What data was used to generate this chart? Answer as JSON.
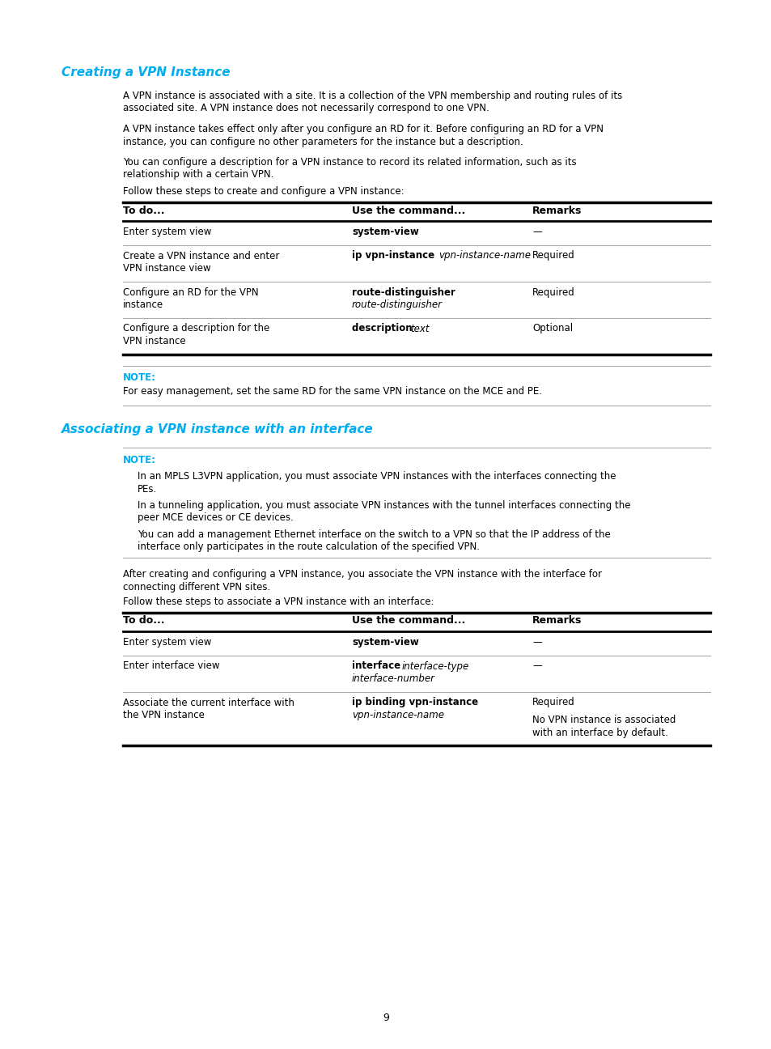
{
  "bg_color": "#ffffff",
  "cyan_color": "#00AEEF",
  "black_color": "#000000",
  "section1_title": "Creating a VPN Instance",
  "section1_para1": "A VPN instance is associated with a site. It is a collection of the VPN membership and routing rules of its associated site. A VPN instance does not necessarily correspond to one VPN.",
  "section1_para2": "A VPN instance takes effect only after you configure an RD for it. Before configuring an RD for a VPN instance, you can configure no other parameters for the instance but a description.",
  "section1_para3": "You can configure a description for a VPN instance to record its related information, such as its relationship with a certain VPN.",
  "section1_table_intro": "Follow these steps to create and configure a VPN instance:",
  "table1_headers": [
    "To do...",
    "Use the command...",
    "Remarks"
  ],
  "table1_rows": [
    [
      "Enter system view",
      "system-view",
      "—"
    ],
    [
      "Create a VPN instance and enter\nVPN instance view",
      "ip vpn-instance vpn-instance-name",
      "Required"
    ],
    [
      "Configure an RD for the VPN\ninstance",
      "route-distinguisher\nroute-distinguisher",
      "Required"
    ],
    [
      "Configure a description for the\nVPN instance",
      "description text",
      "Optional"
    ]
  ],
  "note1_label": "NOTE:",
  "note1_text": "For easy management, set the same RD for the same VPN instance on the MCE and PE.",
  "section2_title": "Associating a VPN instance with an interface",
  "note2_label": "NOTE:",
  "note2_lines": [
    "In an MPLS L3VPN application, you must associate VPN instances with the interfaces connecting the PEs.",
    "In a tunneling application, you must associate VPN instances with the tunnel interfaces connecting the peer MCE devices or CE devices.",
    "You can add a management Ethernet interface on the switch to a VPN so that the IP address of the interface only participates in the route calculation of the specified VPN."
  ],
  "section2_para1": "After creating and configuring a VPN instance, you associate the VPN instance with the interface for connecting different VPN sites.",
  "section2_table_intro": "Follow these steps to associate a VPN instance with an interface:",
  "table2_headers": [
    "To do...",
    "Use the command...",
    "Remarks"
  ],
  "table2_rows": [
    [
      "Enter system view",
      "system-view",
      "—"
    ],
    [
      "Enter interface view",
      "interface interface-type\ninterface-number",
      "—"
    ],
    [
      "Associate the current interface with\nthe VPN instance",
      "ip binding vpn-instance\nvpn-instance-name",
      "Required\n\nNo VPN instance is associated\nwith an interface by default."
    ]
  ],
  "page_number": "9"
}
